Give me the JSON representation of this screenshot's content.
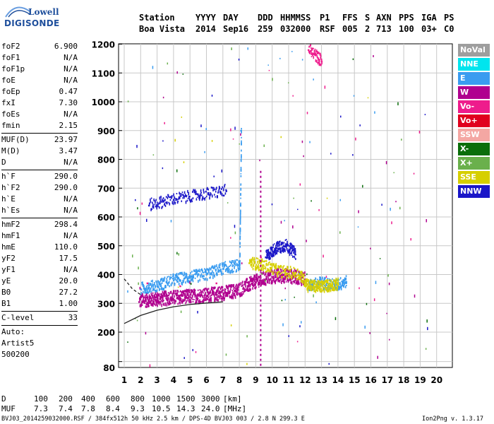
{
  "logo": {
    "top": "Lowell",
    "main": "DIGISONDE"
  },
  "header": {
    "labels": [
      "Station",
      "YYYY",
      "DAY",
      "DDD",
      "HHMMSS",
      "P1",
      "FFS",
      "S",
      "AXN",
      "PPS",
      "IGA",
      "PS"
    ],
    "values": [
      "Boa Vista",
      "2014",
      "Sep16",
      "259",
      "032000",
      "RSF",
      "005",
      "2",
      "713",
      "100",
      "03+",
      "C0"
    ]
  },
  "params": {
    "group1": [
      {
        "name": "foF2",
        "value": "6.900"
      },
      {
        "name": "foF1",
        "value": "N/A"
      },
      {
        "name": "foF1p",
        "value": "N/A"
      },
      {
        "name": "foE",
        "value": "N/A"
      },
      {
        "name": "foEp",
        "value": "0.47"
      },
      {
        "name": "fxI",
        "value": "7.30"
      },
      {
        "name": "foEs",
        "value": "N/A"
      },
      {
        "name": "fmin",
        "value": "2.15"
      }
    ],
    "group2": [
      {
        "name": "MUF(D)",
        "value": "23.97"
      },
      {
        "name": "M(D)",
        "value": "3.47"
      },
      {
        "name": "D",
        "value": "N/A"
      }
    ],
    "group3": [
      {
        "name": "h`F",
        "value": "290.0"
      },
      {
        "name": "h`F2",
        "value": "290.0"
      },
      {
        "name": "h`E",
        "value": "N/A"
      },
      {
        "name": "h`Es",
        "value": "N/A"
      }
    ],
    "group4": [
      {
        "name": "hmF2",
        "value": "298.4"
      },
      {
        "name": "hmF1",
        "value": "N/A"
      },
      {
        "name": "hmE",
        "value": "110.0"
      },
      {
        "name": "yF2",
        "value": "17.5"
      },
      {
        "name": "yF1",
        "value": "N/A"
      },
      {
        "name": "yE",
        "value": "20.0"
      },
      {
        "name": "B0",
        "value": "27.2"
      },
      {
        "name": "B1",
        "value": "1.00"
      }
    ],
    "clevel": {
      "name": "C-level",
      "value": "33"
    },
    "auto": [
      "Auto:",
      "Artist5",
      "500200"
    ]
  },
  "legend": [
    {
      "label": "NoVal",
      "color": "#9e9e9e"
    },
    {
      "label": "NNE",
      "color": "#00e5ee"
    },
    {
      "label": "E",
      "color": "#3a9cf0"
    },
    {
      "label": "W",
      "color": "#b0008f"
    },
    {
      "label": "Vo-",
      "color": "#ee1c8c"
    },
    {
      "label": "Vo+",
      "color": "#e0001e"
    },
    {
      "label": "SSW",
      "color": "#f4a7a3"
    },
    {
      "label": "X-",
      "color": "#0b6e0b"
    },
    {
      "label": "X+",
      "color": "#6ab04c"
    },
    {
      "label": "SSE",
      "color": "#d6cf00"
    },
    {
      "label": "NNW",
      "color": "#1a16c8"
    }
  ],
  "footer": {
    "d_label": "D",
    "d_values": [
      "100",
      "200",
      "400",
      "600",
      "800",
      "1000",
      "1500",
      "3000"
    ],
    "d_unit": "[km]",
    "muf_label": "MUF",
    "muf_values": [
      "7.3",
      "7.4",
      "7.8",
      "8.4",
      "9.3",
      "10.5",
      "14.3",
      "24.0"
    ],
    "muf_unit": "[MHz]",
    "file_info": "BVJ03_2014259032000.RSF / 384fx512h 50 kHz 2.5 km / DPS-4D BVJ03 003 / 2.8 N 299.3 E",
    "version": "Ion2Png v. 1.3.17"
  },
  "chart_data": {
    "type": "scatter",
    "title": "",
    "xlabel": "",
    "ylabel": "",
    "xlim": [
      1,
      20
    ],
    "ylim": [
      80,
      1200
    ],
    "x_ticks": [
      1,
      2,
      3,
      4,
      5,
      6,
      7,
      8,
      9,
      10,
      11,
      12,
      13,
      14,
      15,
      16,
      17,
      18,
      19,
      20
    ],
    "y_ticks": [
      80,
      100,
      200,
      300,
      400,
      500,
      600,
      700,
      800,
      900,
      1000,
      1100,
      1200
    ],
    "y_tick_labels": [
      "80",
      "",
      "200",
      "300",
      "400",
      "500",
      "600",
      "700",
      "800",
      "900",
      "1000",
      "1100",
      "1200"
    ],
    "grid": true,
    "frequency_unit": "MHz",
    "height_unit": "km",
    "series": [
      {
        "name": "W",
        "color": "#b0008f",
        "x": [
          1.9,
          2.5,
          3.0,
          3.6,
          4.2,
          4.8,
          5.4,
          6.0,
          6.6,
          7.2,
          7.8,
          8.5,
          9.0,
          9.6,
          10.2,
          10.8,
          11.4,
          12.0
        ],
        "y": [
          305,
          310,
          312,
          315,
          318,
          320,
          322,
          325,
          330,
          335,
          340,
          360,
          372,
          385,
          392,
          393,
          390,
          380
        ]
      },
      {
        "name": "E",
        "color": "#3a9cf0",
        "x": [
          2.0,
          3.0,
          4.0,
          5.0,
          6.0,
          7.0,
          8.0,
          8.1,
          12.2,
          13.0,
          13.8,
          14.5
        ],
        "y": [
          350,
          360,
          380,
          390,
          400,
          420,
          430,
          900,
          360,
          370,
          360,
          375
        ]
      },
      {
        "name": "NNW",
        "color": "#1a16c8",
        "x": [
          2.5,
          4.0,
          5.6,
          7.2,
          9.6,
          10.2,
          10.8,
          11.4
        ],
        "y": [
          640,
          660,
          675,
          690,
          460,
          490,
          500,
          470
        ]
      },
      {
        "name": "SSE",
        "color": "#d6cf00",
        "x": [
          8.6,
          9.4,
          10.4,
          11.6,
          12.2,
          12.8,
          13.4,
          14.0
        ],
        "y": [
          440,
          430,
          410,
          400,
          360,
          355,
          360,
          365
        ]
      },
      {
        "name": "Vo-",
        "color": "#ee1c8c",
        "x": [
          2.4,
          4.4,
          6.6,
          9.3,
          12.2,
          13.0
        ],
        "y": [
          370,
          360,
          370,
          460,
          1180,
          1140
        ]
      }
    ],
    "annotation_curves": [
      {
        "style": "dashed",
        "x": [
          1.0,
          1.5,
          2.0
        ],
        "y": [
          385,
          350,
          330
        ]
      },
      {
        "style": "solid",
        "x": [
          1.0,
          2.0,
          3.0,
          4.0,
          5.0,
          6.0,
          7.0
        ],
        "y": [
          230,
          258,
          276,
          288,
          296,
          301,
          305
        ]
      }
    ],
    "vertical_markers": [
      {
        "x": 9.3,
        "style": "dashed"
      }
    ]
  }
}
